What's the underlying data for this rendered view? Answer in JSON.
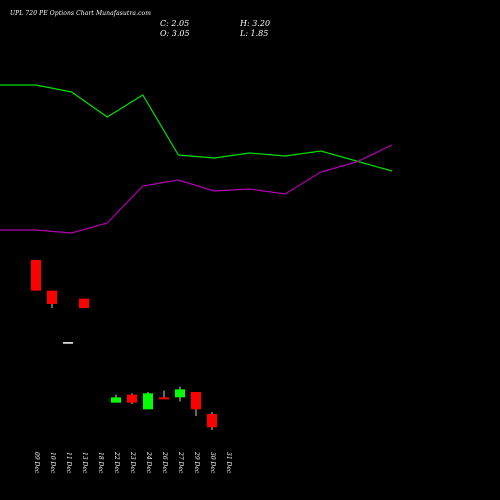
{
  "title": "UPL 720 PE Options Chart Munafasutra.com",
  "ohlc": {
    "c": "C: 2.05",
    "h": "H: 3.20",
    "o": "O: 3.05",
    "l": "L: 1.85"
  },
  "colors": {
    "up": "#00ff00",
    "down": "#ff0000",
    "neutral": "#ffffff",
    "line_green": "#00dd00",
    "line_purple": "#b000b0",
    "background": "#000000",
    "text": "#ffffff"
  },
  "chart_data": {
    "type": "candlestick",
    "categories": [
      "09 Dec",
      "10 Dec",
      "11 Dec",
      "13 Dec",
      "18 Dec",
      "22 Dec",
      "23 Dec",
      "24 Dec",
      "26 Dec",
      "27 Dec",
      "29 Dec",
      "30 Dec",
      "31 Dec"
    ],
    "candles": [
      {
        "date": "09 Dec",
        "open": 14.6,
        "high": 14.6,
        "low": 12.3,
        "close": 12.3
      },
      {
        "date": "10 Dec",
        "open": 12.3,
        "high": 12.3,
        "low": 11.0,
        "close": 11.3
      },
      {
        "date": "11 Dec",
        "open": 8.4,
        "high": 8.4,
        "low": 8.4,
        "close": 8.4
      },
      {
        "date": "13 Dec",
        "open": 11.7,
        "high": 11.7,
        "low": 11.0,
        "close": 11.0
      },
      {
        "date": "18 Dec",
        "open": null,
        "high": null,
        "low": null,
        "close": null
      },
      {
        "date": "22 Dec",
        "open": 3.9,
        "high": 4.5,
        "low": 3.9,
        "close": 4.3
      },
      {
        "date": "23 Dec",
        "open": 4.5,
        "high": 4.6,
        "low": 3.8,
        "close": 3.9
      },
      {
        "date": "24 Dec",
        "open": 3.4,
        "high": 4.7,
        "low": 3.4,
        "close": 4.6
      },
      {
        "date": "26 Dec",
        "open": 4.3,
        "high": 4.8,
        "low": 4.2,
        "close": 4.2
      },
      {
        "date": "27 Dec",
        "open": 4.3,
        "high": 5.1,
        "low": 4.0,
        "close": 4.9
      },
      {
        "date": "29 Dec",
        "open": 4.7,
        "high": 4.7,
        "low": 2.9,
        "close": 3.4
      },
      {
        "date": "30 Dec",
        "open": 3.05,
        "high": 3.2,
        "low": 1.85,
        "close": 2.05
      }
    ],
    "lines": [
      {
        "color": "green",
        "values": [
          85,
          85,
          92,
          117,
          95,
          155,
          158,
          153,
          156,
          151,
          161,
          171
        ]
      },
      {
        "color": "purple",
        "values": [
          230,
          230,
          233,
          223,
          186,
          180,
          191,
          189,
          194,
          172,
          162,
          145
        ]
      }
    ],
    "line_scale": "inverted-pixel-like index units (lower value = higher on chart)"
  }
}
